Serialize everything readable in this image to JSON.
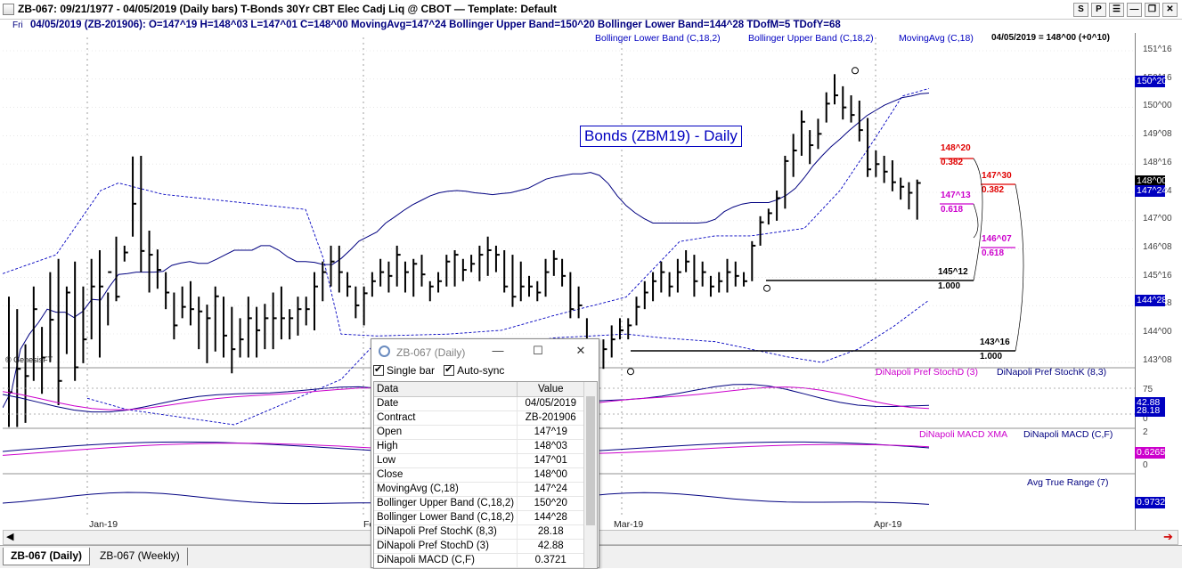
{
  "window": {
    "title": "ZB-067:  09/21/1977 - 04/05/2019  (Daily bars)   T-Bonds 30Yr CBT Elec Cadj Liq @ CBOT  —  Template: Default",
    "buttons": [
      "S",
      "P",
      "☰",
      "—",
      "❐",
      "✕"
    ]
  },
  "infobar": {
    "day": "Fri",
    "data": "04/05/2019 (ZB-201906):  O=147^19  H=148^03  L=147^01  C=148^00  MovingAvg=147^24  Bollinger Upper Band=150^20  Bollinger Lower Band=144^28  TDofM=5  TDofY=68"
  },
  "legend": {
    "bb_lower": "Bollinger Lower Band (C,18,2)",
    "bb_upper": "Bollinger Upper Band (C,18,2)",
    "ma": "MovingAvg (C,18)",
    "last": "04/05/2019 = 148^00 (+0^10)",
    "copyright": "© GenesisFT",
    "chart_title": "Bonds (ZBM19) - Daily"
  },
  "colors": {
    "navy": "#000080",
    "blue": "#0000c0",
    "magenta": "#cc00cc",
    "red": "#e00000",
    "black": "#000000"
  },
  "chart_data": {
    "type": "ohlc",
    "price_axis_ticks": [
      "151^16",
      "150^16",
      "150^00",
      "149^08",
      "148^16",
      "147^24",
      "147^00",
      "146^08",
      "145^16",
      "144^28",
      "144^00",
      "143^08"
    ],
    "x_axis_labels": [
      "Jan-19",
      "Feb-19",
      "Mar-19",
      "Apr-19"
    ],
    "badges": {
      "bb_upper": "150^20",
      "close": "148^00",
      "ma": "147^24",
      "bb_lower": "144^28"
    },
    "fib_levels": [
      {
        "price": "148^20",
        "ratio": "0.382",
        "color": "#e00000"
      },
      {
        "price": "147^30",
        "ratio": "0.382",
        "color": "#e00000"
      },
      {
        "price": "147^13",
        "ratio": "0.618",
        "color": "#cc00cc"
      },
      {
        "price": "146^07",
        "ratio": "0.618",
        "color": "#cc00cc"
      },
      {
        "price": "145^12",
        "ratio": "1.000",
        "color": "#000000"
      },
      {
        "price": "143^16",
        "ratio": "1.000",
        "color": "#000000"
      }
    ],
    "bars": [
      {
        "h": 144.99,
        "l": 141.54,
        "c": 142.46
      },
      {
        "h": 144.66,
        "l": 141.54,
        "c": 143.08
      },
      {
        "h": 143.73,
        "l": 141.65,
        "c": 142.89
      },
      {
        "h": 145.26,
        "l": 142.76,
        "c": 144.66
      },
      {
        "h": 144.19,
        "l": 142.42,
        "c": 143.38
      },
      {
        "h": 145.64,
        "l": 143.26,
        "c": 144.38
      },
      {
        "h": 145.99,
        "l": 142.12,
        "c": 142.76
      },
      {
        "h": 145.26,
        "l": 143.47,
        "c": 145.1
      },
      {
        "h": 145.92,
        "l": 142.76,
        "c": 143.12
      },
      {
        "h": 145.26,
        "l": 143.23,
        "c": 143.86
      },
      {
        "h": 145.99,
        "l": 143.86,
        "c": 145.26
      },
      {
        "h": 146.22,
        "l": 143.38,
        "c": 145.26
      },
      {
        "h": 145.1,
        "l": 144.23,
        "c": 145.64
      },
      {
        "h": 146.58,
        "l": 144.87,
        "c": 144.99
      },
      {
        "h": 146.34,
        "l": 145.92,
        "c": 146.16
      },
      {
        "h": 148.7,
        "l": 146.58,
        "c": 147.45
      },
      {
        "h": 148.72,
        "l": 145.64,
        "c": 146.2
      },
      {
        "h": 146.74,
        "l": 145.1,
        "c": 146.1
      },
      {
        "h": 146.24,
        "l": 145.2,
        "c": 145.7
      },
      {
        "h": 145.64,
        "l": 144.66,
        "c": 145.1
      },
      {
        "h": 145.1,
        "l": 143.86,
        "c": 144.23
      },
      {
        "h": 145.26,
        "l": 144.42,
        "c": 144.72
      },
      {
        "h": 145.4,
        "l": 144.23,
        "c": 144.66
      },
      {
        "h": 144.99,
        "l": 143.6,
        "c": 144.6
      },
      {
        "h": 144.78,
        "l": 143.23,
        "c": 144.42
      },
      {
        "h": 145.26,
        "l": 143.54,
        "c": 145.0
      },
      {
        "h": 144.99,
        "l": 143.38,
        "c": 143.96
      },
      {
        "h": 144.72,
        "l": 142.96,
        "c": 143.6
      },
      {
        "h": 144.42,
        "l": 143.38,
        "c": 143.86
      },
      {
        "h": 144.99,
        "l": 143.38,
        "c": 144.42
      },
      {
        "h": 144.72,
        "l": 143.38,
        "c": 144.1
      },
      {
        "h": 144.8,
        "l": 143.6,
        "c": 144.42
      },
      {
        "h": 145.1,
        "l": 143.6,
        "c": 144.42
      },
      {
        "h": 145.26,
        "l": 143.86,
        "c": 144.42
      },
      {
        "h": 144.66,
        "l": 143.86,
        "c": 144.42
      },
      {
        "h": 144.99,
        "l": 143.96,
        "c": 144.66
      },
      {
        "h": 144.99,
        "l": 144.23,
        "c": 144.66
      },
      {
        "h": 145.64,
        "l": 144.1,
        "c": 145.26
      },
      {
        "h": 145.92,
        "l": 144.87,
        "c": 145.64
      },
      {
        "h": 146.34,
        "l": 145.26,
        "c": 145.92
      },
      {
        "h": 146.34,
        "l": 145.1,
        "c": 145.64
      },
      {
        "h": 145.64,
        "l": 144.99,
        "c": 145.26
      },
      {
        "h": 145.26,
        "l": 144.42,
        "c": 144.76
      },
      {
        "h": 145.26,
        "l": 144.23,
        "c": 145.08
      },
      {
        "h": 145.64,
        "l": 144.99,
        "c": 145.4
      },
      {
        "h": 145.99,
        "l": 145.26,
        "c": 145.64
      },
      {
        "h": 145.92,
        "l": 145.1,
        "c": 145.54
      },
      {
        "h": 146.34,
        "l": 145.26,
        "c": 146.1
      },
      {
        "h": 145.92,
        "l": 145.1,
        "c": 145.64
      },
      {
        "h": 145.99,
        "l": 144.99,
        "c": 145.86
      },
      {
        "h": 146.1,
        "l": 145.26,
        "c": 145.58
      },
      {
        "h": 145.4,
        "l": 144.87,
        "c": 145.26
      },
      {
        "h": 145.64,
        "l": 145.1,
        "c": 145.4
      },
      {
        "h": 146.1,
        "l": 145.26,
        "c": 145.92
      },
      {
        "h": 146.22,
        "l": 145.26,
        "c": 146.1
      },
      {
        "h": 145.99,
        "l": 145.4,
        "c": 145.7
      },
      {
        "h": 146.1,
        "l": 145.64,
        "c": 145.86
      },
      {
        "h": 146.34,
        "l": 145.4,
        "c": 146.1
      },
      {
        "h": 146.58,
        "l": 145.54,
        "c": 146.22
      },
      {
        "h": 146.34,
        "l": 145.64,
        "c": 146.1
      },
      {
        "h": 146.22,
        "l": 145.1,
        "c": 145.26
      },
      {
        "h": 146.1,
        "l": 144.72,
        "c": 144.99
      },
      {
        "h": 145.92,
        "l": 144.87,
        "c": 145.26
      },
      {
        "h": 145.54,
        "l": 144.99,
        "c": 145.26
      },
      {
        "h": 145.4,
        "l": 144.87,
        "c": 145.1
      },
      {
        "h": 145.99,
        "l": 144.99,
        "c": 145.64
      },
      {
        "h": 146.22,
        "l": 145.54,
        "c": 145.99
      },
      {
        "h": 145.99,
        "l": 145.26,
        "c": 145.54
      },
      {
        "h": 145.64,
        "l": 144.42,
        "c": 144.66
      },
      {
        "h": 145.26,
        "l": 144.42,
        "c": 144.76
      },
      {
        "h": 144.42,
        "l": 143.6,
        "c": 143.86
      },
      {
        "h": 143.86,
        "l": 143.23,
        "c": 143.38
      },
      {
        "h": 143.86,
        "l": 143.08,
        "c": 143.6
      },
      {
        "h": 144.23,
        "l": 143.38,
        "c": 143.86
      },
      {
        "h": 144.42,
        "l": 143.86,
        "c": 144.1
      },
      {
        "h": 144.42,
        "l": 143.86,
        "c": 144.23
      },
      {
        "h": 144.99,
        "l": 144.23,
        "c": 144.72
      },
      {
        "h": 145.4,
        "l": 144.66,
        "c": 145.1
      },
      {
        "h": 145.64,
        "l": 144.87,
        "c": 145.4
      },
      {
        "h": 145.92,
        "l": 145.1,
        "c": 145.64
      },
      {
        "h": 145.64,
        "l": 144.99,
        "c": 145.26
      },
      {
        "h": 145.99,
        "l": 145.1,
        "c": 145.64
      },
      {
        "h": 146.22,
        "l": 145.64,
        "c": 145.92
      },
      {
        "h": 146.1,
        "l": 144.99,
        "c": 145.4
      },
      {
        "h": 145.92,
        "l": 145.26,
        "c": 145.64
      },
      {
        "h": 145.54,
        "l": 144.99,
        "c": 145.26
      },
      {
        "h": 145.64,
        "l": 145.1,
        "c": 145.4
      },
      {
        "h": 145.99,
        "l": 145.1,
        "c": 145.64
      },
      {
        "h": 145.92,
        "l": 145.26,
        "c": 145.54
      },
      {
        "h": 145.64,
        "l": 145.26,
        "c": 145.4
      },
      {
        "h": 146.46,
        "l": 145.4,
        "c": 146.34
      },
      {
        "h": 147.12,
        "l": 146.34,
        "c": 146.96
      },
      {
        "h": 147.32,
        "l": 146.9,
        "c": 147.2
      },
      {
        "h": 147.8,
        "l": 147.0,
        "c": 147.6
      },
      {
        "h": 148.72,
        "l": 147.32,
        "c": 148.58
      },
      {
        "h": 149.3,
        "l": 148.16,
        "c": 148.86
      },
      {
        "h": 149.92,
        "l": 148.72,
        "c": 149.62
      },
      {
        "h": 149.4,
        "l": 148.5,
        "c": 149.0
      },
      {
        "h": 149.7,
        "l": 148.9,
        "c": 149.3
      },
      {
        "h": 150.4,
        "l": 149.6,
        "c": 150.1
      },
      {
        "h": 150.88,
        "l": 150.08,
        "c": 150.32
      },
      {
        "h": 150.56,
        "l": 149.68,
        "c": 150.0
      },
      {
        "h": 150.32,
        "l": 149.6,
        "c": 149.8
      },
      {
        "h": 150.18,
        "l": 149.1,
        "c": 149.4
      },
      {
        "h": 149.72,
        "l": 148.16,
        "c": 148.36
      },
      {
        "h": 148.86,
        "l": 148.16,
        "c": 148.5
      },
      {
        "h": 148.72,
        "l": 148.0,
        "c": 148.3
      },
      {
        "h": 148.6,
        "l": 147.78,
        "c": 148.02
      },
      {
        "h": 148.14,
        "l": 147.56,
        "c": 147.9
      },
      {
        "h": 148.02,
        "l": 147.3,
        "c": 147.74
      },
      {
        "h": 148.09,
        "l": 147.03,
        "c": 148.0
      }
    ],
    "moving_avg": [
      [
        0,
        142.05
      ],
      [
        10,
        142.5
      ],
      [
        20,
        143.6
      ],
      [
        30,
        144.0
      ],
      [
        40,
        144.3
      ],
      [
        50,
        144.66
      ],
      [
        60,
        144.58
      ],
      [
        70,
        144.58
      ],
      [
        80,
        144.44
      ],
      [
        90,
        144.6
      ],
      [
        100,
        144.92
      ],
      [
        110,
        144.9
      ],
      [
        120,
        145.26
      ],
      [
        130,
        145.58
      ],
      [
        140,
        145.6
      ],
      [
        150,
        145.64
      ],
      [
        160,
        145.64
      ],
      [
        170,
        145.64
      ],
      [
        180,
        145.66
      ],
      [
        190,
        145.82
      ],
      [
        200,
        145.88
      ],
      [
        210,
        145.92
      ],
      [
        220,
        145.87
      ],
      [
        230,
        145.87
      ],
      [
        240,
        145.98
      ],
      [
        250,
        146.1
      ],
      [
        260,
        146.22
      ],
      [
        270,
        146.22
      ],
      [
        280,
        146.22
      ],
      [
        290,
        146.34
      ],
      [
        300,
        146.34
      ],
      [
        310,
        146.22
      ],
      [
        320,
        146.04
      ],
      [
        330,
        145.92
      ],
      [
        340,
        145.92
      ],
      [
        350,
        145.9
      ],
      [
        360,
        145.84
      ],
      [
        370,
        145.84
      ],
      [
        380,
        146.0
      ],
      [
        390,
        146.22
      ],
      [
        400,
        146.46
      ],
      [
        410,
        146.58
      ],
      [
        420,
        146.7
      ],
      [
        430,
        146.94
      ],
      [
        440,
        147.1
      ],
      [
        450,
        147.27
      ],
      [
        460,
        147.42
      ],
      [
        470,
        147.54
      ],
      [
        480,
        147.66
      ],
      [
        490,
        147.74
      ],
      [
        500,
        147.78
      ],
      [
        510,
        147.8
      ],
      [
        520,
        147.78
      ],
      [
        530,
        147.74
      ],
      [
        540,
        147.72
      ],
      [
        550,
        147.69
      ],
      [
        560,
        147.72
      ],
      [
        570,
        147.74
      ],
      [
        580,
        147.8
      ],
      [
        590,
        147.86
      ],
      [
        600,
        147.98
      ],
      [
        610,
        148.1
      ],
      [
        620,
        148.16
      ],
      [
        630,
        148.2
      ],
      [
        640,
        148.24
      ],
      [
        650,
        148.24
      ],
      [
        660,
        148.28
      ],
      [
        670,
        148.2
      ],
      [
        680,
        147.98
      ],
      [
        690,
        147.66
      ],
      [
        700,
        147.4
      ],
      [
        710,
        147.21
      ],
      [
        720,
        147.06
      ],
      [
        730,
        146.94
      ],
      [
        740,
        146.94
      ],
      [
        750,
        146.94
      ],
      [
        760,
        146.94
      ],
      [
        770,
        146.94
      ],
      [
        780,
        146.94
      ],
      [
        790,
        146.96
      ],
      [
        800,
        147.04
      ],
      [
        810,
        147.24
      ],
      [
        820,
        147.36
      ],
      [
        830,
        147.44
      ],
      [
        840,
        147.48
      ],
      [
        850,
        147.48
      ],
      [
        860,
        147.48
      ],
      [
        870,
        147.56
      ],
      [
        880,
        147.68
      ],
      [
        890,
        147.86
      ],
      [
        900,
        148.14
      ],
      [
        910,
        148.46
      ],
      [
        920,
        148.72
      ],
      [
        930,
        148.96
      ],
      [
        940,
        149.16
      ],
      [
        950,
        149.38
      ],
      [
        960,
        149.58
      ],
      [
        970,
        149.78
      ],
      [
        980,
        149.92
      ],
      [
        990,
        150.06
      ],
      [
        1000,
        150.16
      ],
      [
        1010,
        150.26
      ],
      [
        1020,
        150.3
      ],
      [
        1030,
        150.36
      ],
      [
        1040,
        150.38
      ]
    ]
  },
  "panels": {
    "stoch": {
      "label_d": "DiNapoli Pref StochD (3)",
      "label_k": "DiNapoli Pref StochK (8,3)",
      "ticks": [
        "75",
        "25",
        "0"
      ],
      "badge1": "42.88",
      "badge2": "28.18"
    },
    "macd": {
      "label_xma": "DiNapoli MACD XMA",
      "label_macd": "DiNapoli MACD (C,F)",
      "ticks": [
        "2",
        "0"
      ],
      "badge": "0.6265"
    },
    "atr": {
      "label": "Avg True Range (7)",
      "badge": "0.9732"
    }
  },
  "popup": {
    "title": "ZB-067 (Daily)",
    "single_bar": "Single bar",
    "auto_sync": "Auto-sync",
    "col_data": "Data",
    "col_value": "Value",
    "rows": [
      [
        "Date",
        "04/05/2019"
      ],
      [
        "Contract",
        "ZB-201906"
      ],
      [
        "Open",
        "147^19"
      ],
      [
        "High",
        "148^03"
      ],
      [
        "Low",
        "147^01"
      ],
      [
        "Close",
        "148^00"
      ],
      [
        "MovingAvg (C,18)",
        "147^24"
      ],
      [
        "Bollinger Upper Band (C,18,2)",
        "150^20"
      ],
      [
        "Bollinger Lower Band (C,18,2)",
        "144^28"
      ],
      [
        "DiNapoli Pref StochK (8,3)",
        "28.18"
      ],
      [
        "DiNapoli Pref StochD (3)",
        "42.88"
      ],
      [
        "DiNapoli MACD (C,F)",
        "0.3721"
      ]
    ]
  },
  "tabs": [
    "ZB-067 (Daily)",
    "ZB-067 (Weekly)"
  ]
}
